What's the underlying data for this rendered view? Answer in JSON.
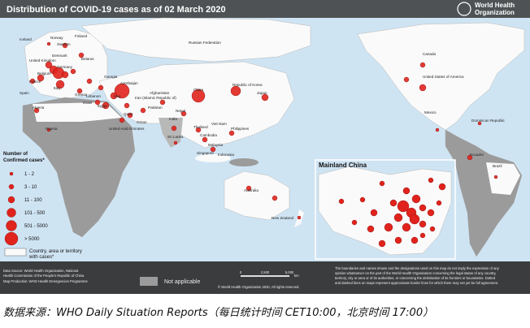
{
  "header": {
    "title": "Distribution of COVID-19  cases as of 02 March 2020",
    "org_line1": "World Health",
    "org_line2": "Organization"
  },
  "map": {
    "labels": [
      "Iceland",
      "Norway",
      "Finland",
      "Sweden",
      "United Kingdom",
      "Denmark",
      "Germany",
      "Belarus",
      "Belgium",
      "France",
      "Spain",
      "Italy",
      "Greece",
      "Algeria",
      "Nigeria",
      "Egypt",
      "Georgia",
      "Azerbaijan",
      "Lebanon",
      "Israel",
      "Iraq",
      "Iran (Islamic Republic of)",
      "Qatar",
      "Oman",
      "United Arab Emirates",
      "Afghanistan",
      "Pakistan",
      "India",
      "Nepal",
      "Sri Lanka",
      "Russian Federation",
      "China",
      "Republic of Korea",
      "Japan",
      "Thailand",
      "Viet Nam",
      "Cambodia",
      "Philippines",
      "Malaysia",
      "Singapore",
      "Indonesia",
      "Australia",
      "New Zealand",
      "Canada",
      "United States of America",
      "Mexico",
      "Dominican Republic",
      "Ecuador",
      "Brazil"
    ],
    "inset_title": "Mainland China"
  },
  "legend": {
    "title_line1": "Number of",
    "title_line2": "Confirmed cases*",
    "items": [
      "1 - 2",
      "3 - 10",
      "11 - 100",
      "101 - 500",
      "501 - 5000",
      "> 5000"
    ],
    "territory_line1": "Country, area or territory",
    "territory_line2": "with cases*",
    "not_applicable": "Not applicable"
  },
  "scale": {
    "ticks": [
      "0",
      "2,500",
      "5,000"
    ],
    "unit": "km"
  },
  "footer": {
    "data_source": "Data Source: World Health Organization, National",
    "data_source2": "Health Commission of the People's Republic of China",
    "map_production": "Map Production: WHO Health Emergencies Programme",
    "copyright": "© World Health Organization 2020, All rights reserved.",
    "disclaimer": [
      "The boundaries and names shown and the designations used on this map do not imply the expression of any",
      "opinion whatsoever on the part of the World Health Organization concerning the legal status of any country,",
      "territory, city or area or of its authorities, or concerning the delimitation of its frontiers or boundaries. Dotted",
      "and dashed lines on maps represent approximate border lines for which there may not yet be full agreement."
    ]
  },
  "caption": "数据来源：WHO Daily Situation Reports（每日统计时间 CET10:00，北京时间 17:00）"
}
